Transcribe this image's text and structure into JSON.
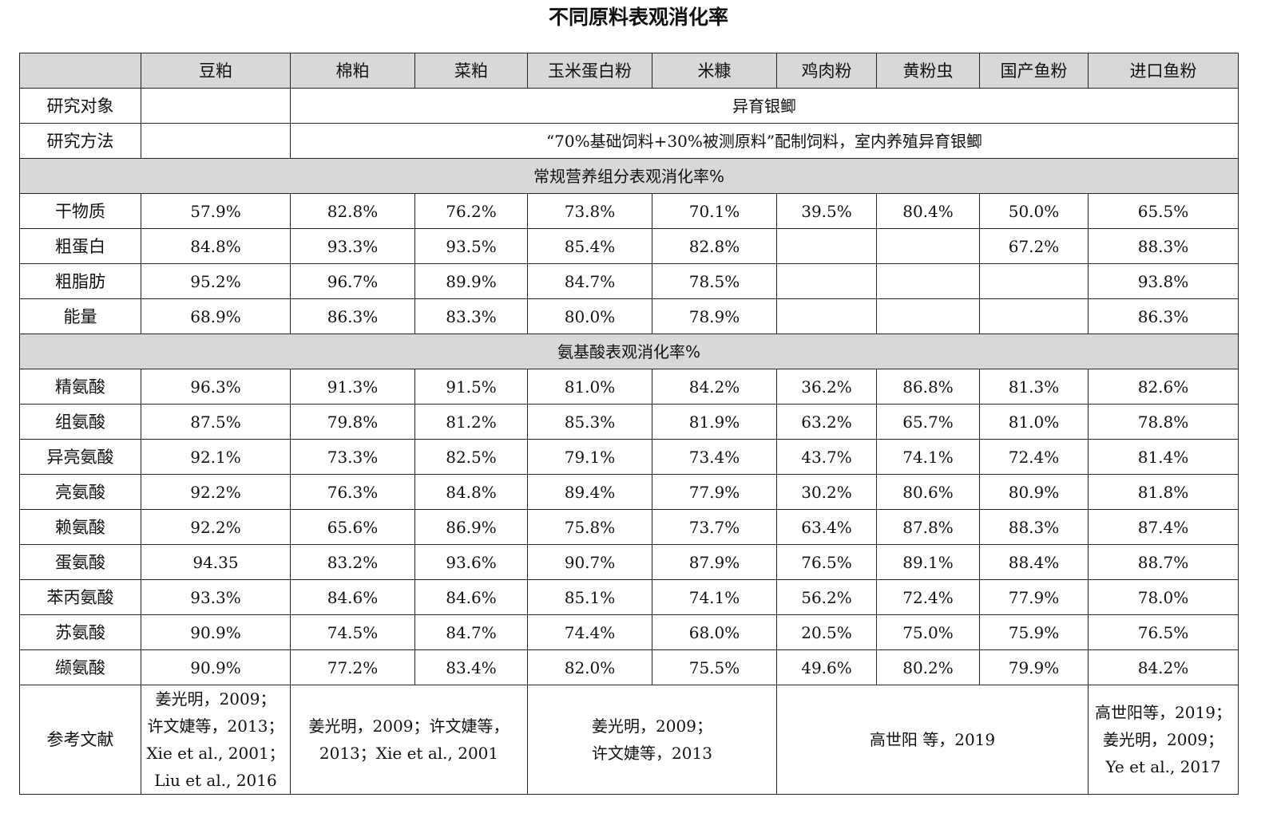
{
  "title": "不同原料表观消化率",
  "columns": [
    "豆粕",
    "棉粕",
    "菜粕",
    "玉米蛋白粉",
    "米糠",
    "鸡肉粉",
    "黄粉虫",
    "国产鱼粉",
    "进口鱼粉"
  ],
  "subject": {
    "label": "研究对象",
    "value": "异育银鲫"
  },
  "method": {
    "label": "研究方法",
    "value": "“70%基础饲料+30%被测原料”配制饲料，室内养殖异育银鲫"
  },
  "section1": {
    "heading": "常规营养组分表观消化率%",
    "rows": [
      {
        "label": "干物质",
        "values": [
          "57.9%",
          "82.8%",
          "76.2%",
          "73.8%",
          "70.1%",
          "39.5%",
          "80.4%",
          "50.0%",
          "65.5%"
        ]
      },
      {
        "label": "粗蛋白",
        "values": [
          "84.8%",
          "93.3%",
          "93.5%",
          "85.4%",
          "82.8%",
          "",
          "",
          "67.2%",
          "88.3%"
        ]
      },
      {
        "label": "粗脂肪",
        "values": [
          "95.2%",
          "96.7%",
          "89.9%",
          "84.7%",
          "78.5%",
          "",
          "",
          "",
          "93.8%"
        ]
      },
      {
        "label": "能量",
        "values": [
          "68.9%",
          "86.3%",
          "83.3%",
          "80.0%",
          "78.9%",
          "",
          "",
          "",
          "86.3%"
        ]
      }
    ]
  },
  "section2": {
    "heading": "氨基酸表观消化率%",
    "rows": [
      {
        "label": "精氨酸",
        "values": [
          "96.3%",
          "91.3%",
          "91.5%",
          "81.0%",
          "84.2%",
          "36.2%",
          "86.8%",
          "81.3%",
          "82.6%"
        ]
      },
      {
        "label": "组氨酸",
        "values": [
          "87.5%",
          "79.8%",
          "81.2%",
          "85.3%",
          "81.9%",
          "63.2%",
          "65.7%",
          "81.0%",
          "78.8%"
        ]
      },
      {
        "label": "异亮氨酸",
        "values": [
          "92.1%",
          "73.3%",
          "82.5%",
          "79.1%",
          "73.4%",
          "43.7%",
          "74.1%",
          "72.4%",
          "81.4%"
        ]
      },
      {
        "label": "亮氨酸",
        "values": [
          "92.2%",
          "76.3%",
          "84.8%",
          "89.4%",
          "77.9%",
          "30.2%",
          "80.6%",
          "80.9%",
          "81.8%"
        ]
      },
      {
        "label": "赖氨酸",
        "values": [
          "92.2%",
          "65.6%",
          "86.9%",
          "75.8%",
          "73.7%",
          "63.4%",
          "87.8%",
          "88.3%",
          "87.4%"
        ]
      },
      {
        "label": "蛋氨酸",
        "values": [
          "94.35",
          "83.2%",
          "93.6%",
          "90.7%",
          "87.9%",
          "76.5%",
          "89.1%",
          "88.4%",
          "88.7%"
        ]
      },
      {
        "label": "苯丙氨酸",
        "values": [
          "93.3%",
          "84.6%",
          "84.6%",
          "85.1%",
          "74.1%",
          "56.2%",
          "72.4%",
          "77.9%",
          "78.0%"
        ]
      },
      {
        "label": "苏氨酸",
        "values": [
          "90.9%",
          "74.5%",
          "84.7%",
          "74.4%",
          "68.0%",
          "20.5%",
          "75.0%",
          "75.9%",
          "76.5%"
        ]
      },
      {
        "label": "缬氨酸",
        "values": [
          "90.9%",
          "77.2%",
          "83.4%",
          "82.0%",
          "75.5%",
          "49.6%",
          "80.2%",
          "79.9%",
          "84.2%"
        ]
      }
    ]
  },
  "references": {
    "label": "参考文献",
    "col1": [
      "姜光明，2009；",
      "许文婕等，2013；",
      "Xie et al., 2001；",
      "Liu et al., 2016"
    ],
    "col2": [
      "姜光明，2009；许文婕等，",
      "2013；Xie et al., 2001"
    ],
    "col3": [
      "姜光明，2009；",
      "许文婕等，2013"
    ],
    "col4": [
      "高世阳 等，2019"
    ],
    "col5": [
      "高世阳等，2019；",
      "姜光明，2009；",
      "Ye et al., 2017"
    ]
  }
}
